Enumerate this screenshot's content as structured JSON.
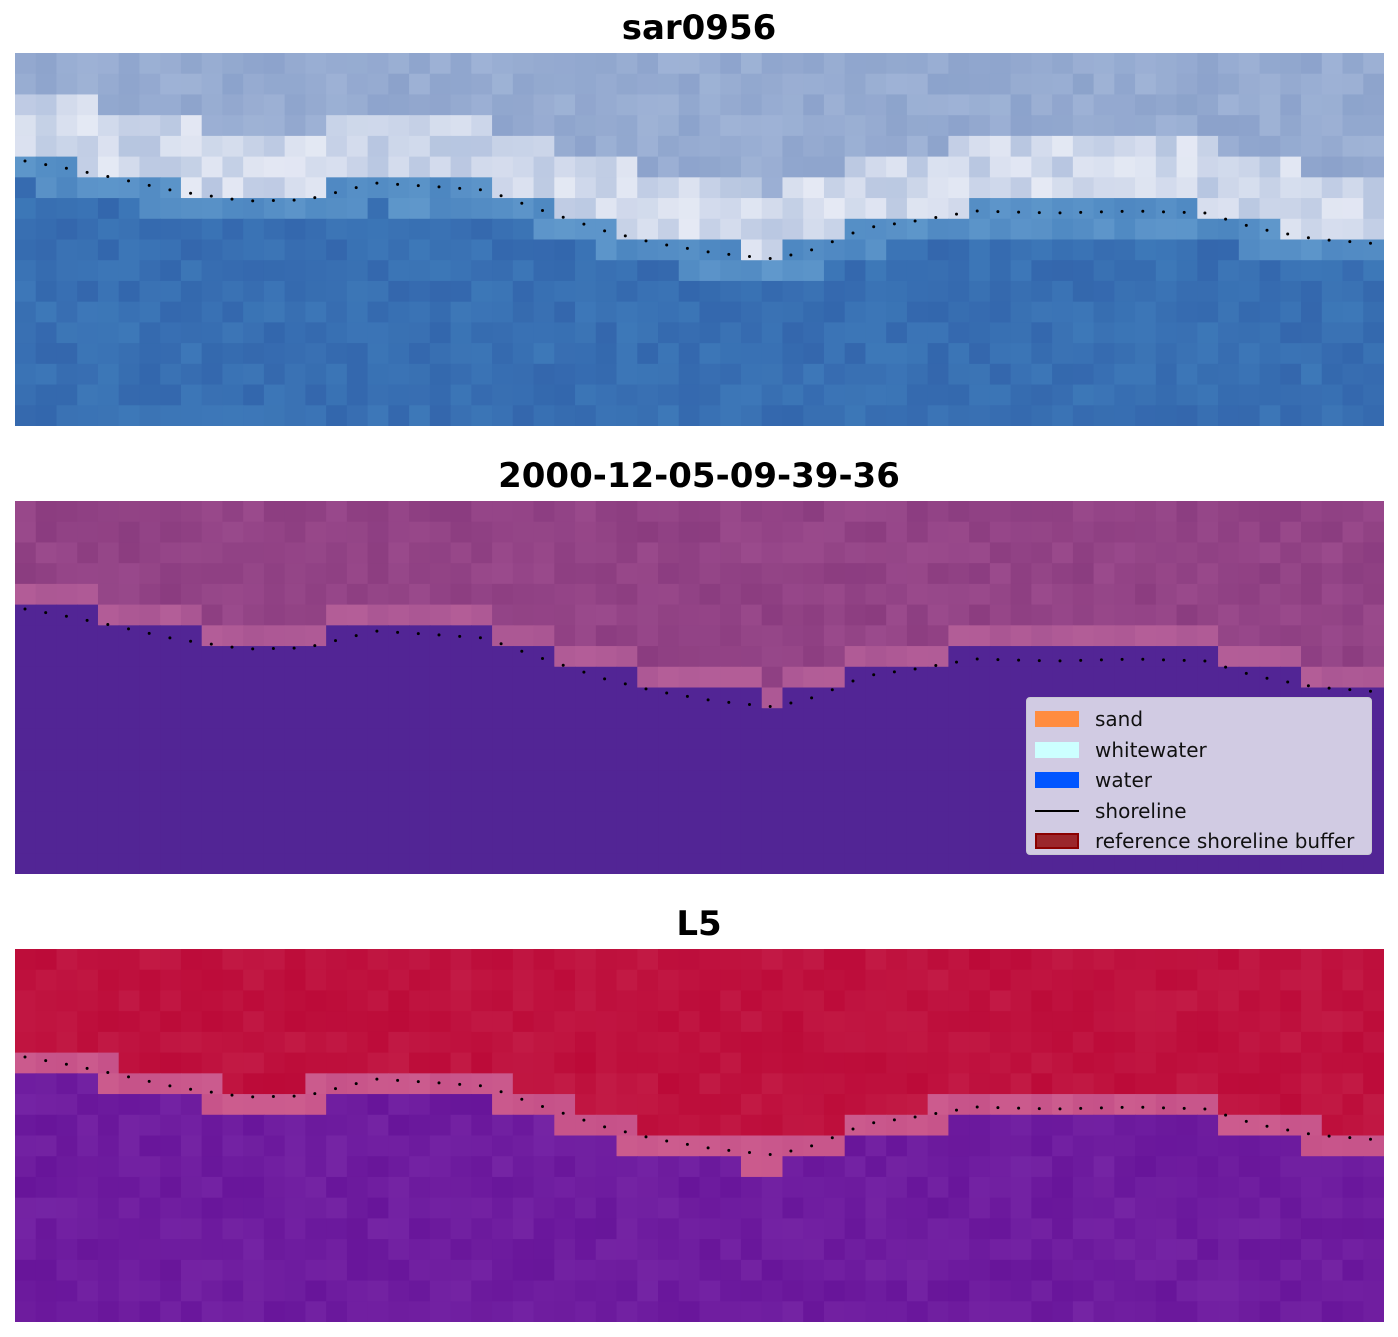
{
  "panels": [
    {
      "title": "sar0956",
      "colormap": "rgb"
    },
    {
      "title": "2000-12-05-09-39-36",
      "colormap": "classified"
    },
    {
      "title": "L5",
      "colormap": "mndwi"
    }
  ],
  "legend": {
    "items": [
      {
        "label": "sand",
        "kind": "patch",
        "color": "#ff8c3f"
      },
      {
        "label": "whitewater",
        "kind": "patch",
        "color": "#ccffff"
      },
      {
        "label": "water",
        "kind": "patch",
        "color": "#0055ff"
      },
      {
        "label": "shoreline",
        "kind": "line",
        "color": "#000000"
      },
      {
        "label": "reference shoreline buffer",
        "kind": "patch",
        "color": "#9b262b",
        "edge": "#8b0000"
      }
    ]
  },
  "colors": {
    "sar_sky": "#9fb3d6",
    "sar_white": "#eef0f8",
    "sar_water": "#3d78b8",
    "class_land": "#9a4a8c",
    "class_buffer": "#b45e98",
    "class_water": "#522595",
    "mndwi_land": "#c21a45",
    "mndwi_buffer": "#cc5c8e",
    "mndwi_water": "#68159a",
    "shoreline": "#000000"
  }
}
